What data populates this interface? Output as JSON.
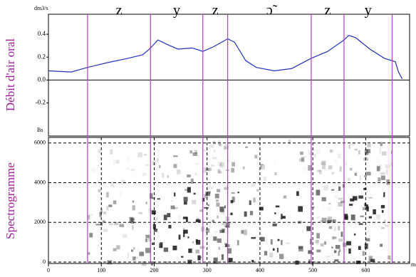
{
  "chart_data": [
    {
      "type": "line",
      "y_label": "Débit d'air oral",
      "unit_label": "dm3/s",
      "bottom_label": "Bs",
      "color": "#2030c0",
      "x": [
        0,
        43,
        74,
        110,
        151,
        178,
        191,
        207,
        225,
        245,
        272,
        292,
        312,
        339,
        352,
        373,
        393,
        427,
        460,
        497,
        528,
        559,
        568,
        581,
        608,
        635,
        656,
        662,
        669
      ],
      "values": [
        0.08,
        0.07,
        0.11,
        0.15,
        0.19,
        0.22,
        0.27,
        0.35,
        0.31,
        0.27,
        0.28,
        0.25,
        0.29,
        0.36,
        0.33,
        0.17,
        0.11,
        0.08,
        0.1,
        0.19,
        0.25,
        0.35,
        0.39,
        0.37,
        0.27,
        0.19,
        0.16,
        0.07,
        0.01
      ],
      "xlim": [
        0,
        683
      ],
      "ylim": [
        -0.49,
        0.575
      ],
      "yticks": [
        0.4,
        0.2,
        {
          "value": 0,
          "label": "0.0"
        },
        -0.2
      ],
      "segments": {
        "bounds": [
          74,
          193,
          292,
          339,
          497,
          559,
          650
        ],
        "labels": [
          "z",
          "y",
          "z",
          "ɔ̃",
          "z",
          "y"
        ],
        "color": "#b040c0"
      }
    },
    {
      "type": "spectrogram",
      "y_label": "Spectrogramme",
      "x_unit": "ms",
      "xlim": [
        0,
        683
      ],
      "ylim": [
        -70,
        6280
      ],
      "xticks": [
        0,
        100,
        200,
        300,
        400,
        500,
        600
      ],
      "yticks": [
        0,
        2000,
        4000,
        6000
      ],
      "grid": true
    }
  ]
}
